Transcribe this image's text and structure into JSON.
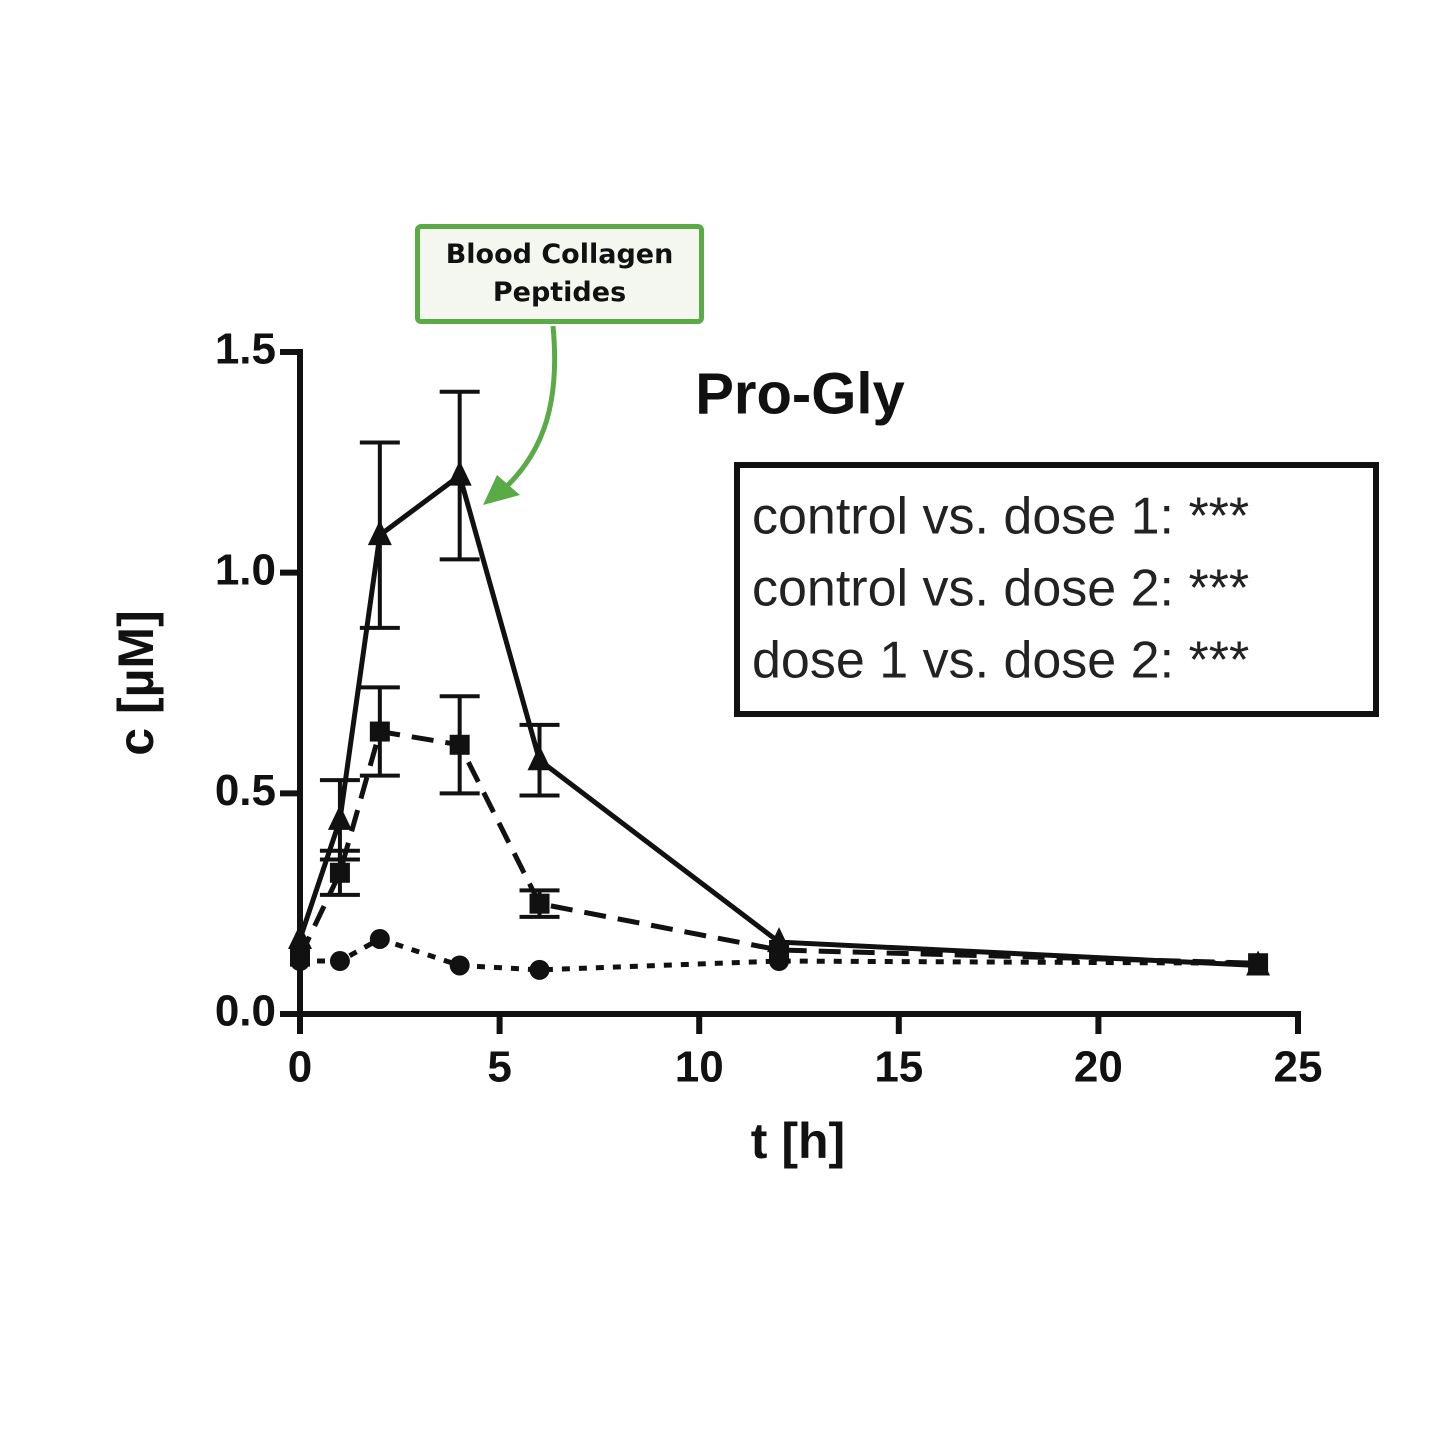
{
  "chart_data": {
    "type": "line",
    "title": "Pro-Gly",
    "xlabel": "t [h]",
    "ylabel": "c [µM]",
    "callout": "Blood Collagen Peptides",
    "annotations": [
      "control vs. dose 1: ***",
      "control vs. dose 2: ***",
      "dose 1 vs. dose 2: ***"
    ],
    "x": [
      0,
      1,
      2,
      4,
      6,
      12,
      24
    ],
    "series": [
      {
        "color": "#111111",
        "marker": "triangle",
        "line": "solid",
        "values": [
          0.17,
          0.44,
          1.085,
          1.22,
          0.575,
          0.163,
          0.11
        ],
        "errors": [
          null,
          0.09,
          0.21,
          0.19,
          0.08,
          null,
          null
        ]
      },
      {
        "color": "#111111",
        "marker": "square",
        "line": "dashed",
        "values": [
          0.13,
          0.32,
          0.64,
          0.61,
          0.25,
          0.145,
          0.115
        ],
        "errors": [
          null,
          0.05,
          0.1,
          0.11,
          0.03,
          null,
          null
        ]
      },
      {
        "color": "#111111",
        "marker": "circle",
        "line": "dotted",
        "values": [
          0.12,
          0.12,
          0.17,
          0.11,
          0.1,
          0.12,
          0.115
        ],
        "errors": [
          null,
          null,
          null,
          null,
          null,
          null,
          null
        ]
      }
    ],
    "xlim": [
      0,
      25
    ],
    "xticks": [
      0,
      5,
      10,
      15,
      20,
      25
    ],
    "ylim": [
      0,
      1.5
    ],
    "yticks": [
      {
        "value": 0,
        "label": "0.0"
      },
      0.5,
      {
        "value": 1,
        "label": "1.0"
      },
      1.5
    ],
    "grid": false
  }
}
